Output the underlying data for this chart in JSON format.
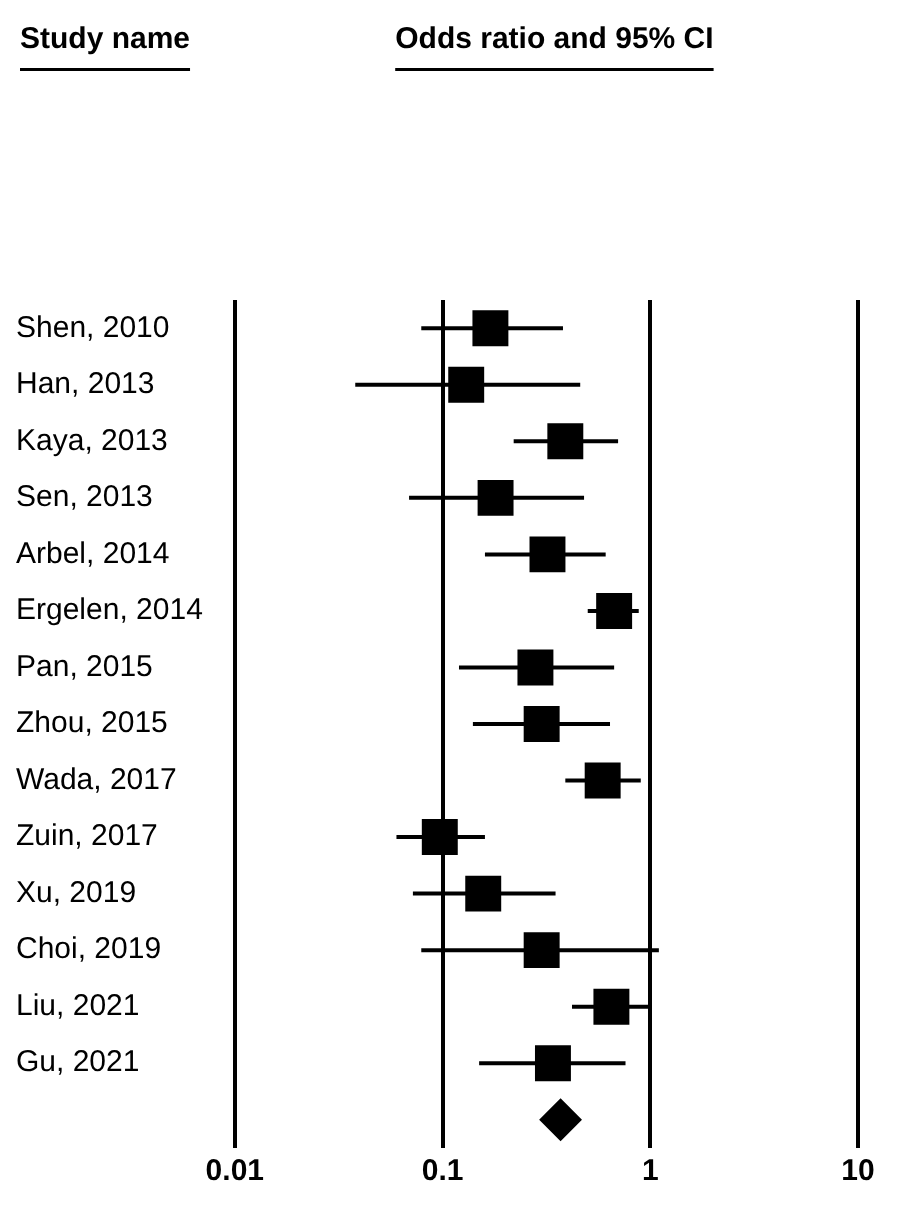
{
  "chart_data": {
    "type": "scatter",
    "orientation": "horizontal",
    "title": "Odds ratio and 95% CI",
    "annotations": [
      "Study name"
    ],
    "categories": [
      "Shen, 2010",
      "Han, 2013",
      "Kaya, 2013",
      "Sen, 2013",
      "Arbel, 2014",
      "Ergelen, 2014",
      "Pan, 2015",
      "Zhou, 2015",
      "Wada, 2017",
      "Zuin, 2017",
      "Xu, 2019",
      "Choi, 2019",
      "Liu, 2021",
      "Gu, 2021",
      null
    ],
    "xlim": [
      0.01,
      10
    ],
    "xticks": [
      0.01,
      0.1,
      1,
      10
    ],
    "log": "x",
    "grid": "x",
    "legend": false,
    "series": [
      {
        "color": "#000000",
        "marker": "square",
        "values": [
          0.17,
          0.13,
          0.39,
          0.18,
          0.32,
          0.67,
          0.28,
          0.3,
          0.59,
          0.097,
          0.157,
          0.3,
          0.65,
          0.34,
          null
        ],
        "errors": [
          [
            0.079,
            0.38
          ],
          [
            0.038,
            0.46
          ],
          [
            0.22,
            0.7
          ],
          [
            0.069,
            0.48
          ],
          [
            0.16,
            0.61
          ],
          [
            0.5,
            0.88
          ],
          [
            0.12,
            0.67
          ],
          [
            0.14,
            0.64
          ],
          [
            0.39,
            0.9
          ],
          [
            0.06,
            0.16
          ],
          [
            0.072,
            0.35
          ],
          [
            0.079,
            1.1
          ],
          [
            0.42,
            1.0
          ],
          [
            0.15,
            0.76
          ],
          null
        ]
      },
      {
        "color": "#000000",
        "marker": "diamond",
        "values": [
          null,
          null,
          null,
          null,
          null,
          null,
          null,
          null,
          null,
          null,
          null,
          null,
          null,
          null,
          0.37
        ]
      }
    ]
  }
}
